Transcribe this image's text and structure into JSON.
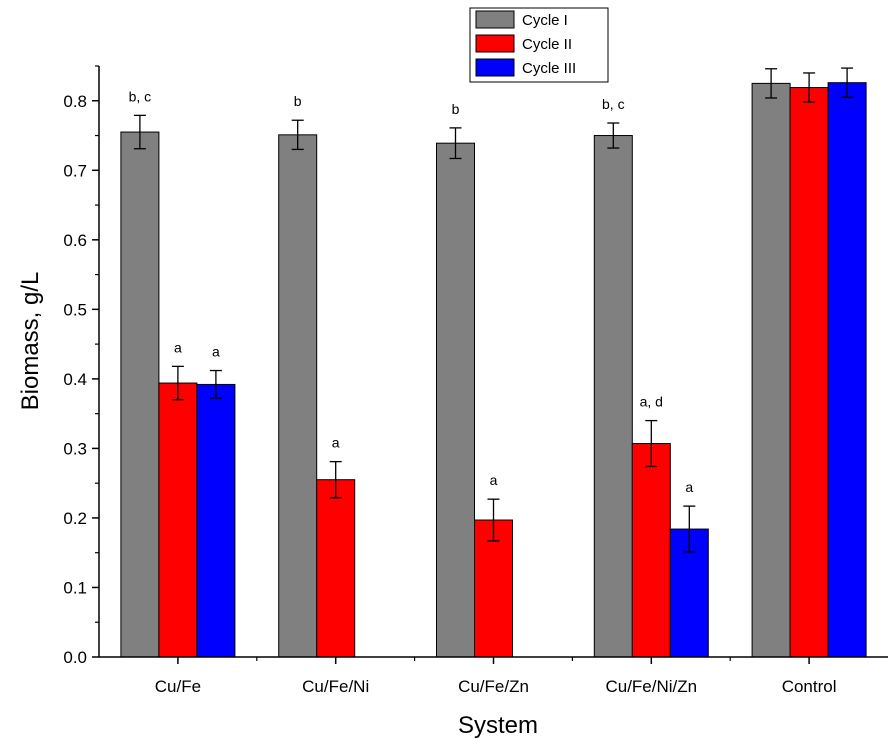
{
  "chart_data": {
    "type": "bar",
    "xlabel": "System",
    "ylabel": "Biomass, g/L",
    "ylim": [
      0,
      0.85
    ],
    "yticks": [
      0.0,
      0.1,
      0.2,
      0.3,
      0.4,
      0.5,
      0.6,
      0.7,
      0.8
    ],
    "ytick_labels": [
      "0.0",
      "0.1",
      "0.2",
      "0.3",
      "0.4",
      "0.5",
      "0.6",
      "0.7",
      "0.8"
    ],
    "categories": [
      "Cu/Fe",
      "Cu/Fe/Ni",
      "Cu/Fe/Zn",
      "Cu/Fe/Ni/Zn",
      "Control"
    ],
    "grid": false,
    "legend_position": "top-center",
    "series": [
      {
        "name": "Cycle I",
        "color": "#808080",
        "values": [
          0.755,
          0.751,
          0.739,
          0.75,
          0.825
        ],
        "errors": [
          0.024,
          0.021,
          0.022,
          0.018,
          0.021
        ],
        "annotations": [
          "b, c",
          "b",
          "b",
          "b, c",
          ""
        ]
      },
      {
        "name": "Cycle II",
        "color": "#ff0000",
        "values": [
          0.394,
          0.255,
          0.197,
          0.307,
          0.819
        ],
        "errors": [
          0.024,
          0.026,
          0.03,
          0.033,
          0.021
        ],
        "annotations": [
          "a",
          "a",
          "a",
          "a, d",
          ""
        ]
      },
      {
        "name": "Cycle III",
        "color": "#0000ff",
        "values": [
          0.392,
          null,
          null,
          0.184,
          0.826
        ],
        "errors": [
          0.02,
          null,
          null,
          0.033,
          0.021
        ],
        "annotations": [
          "a",
          "",
          "",
          "a",
          ""
        ]
      }
    ]
  }
}
